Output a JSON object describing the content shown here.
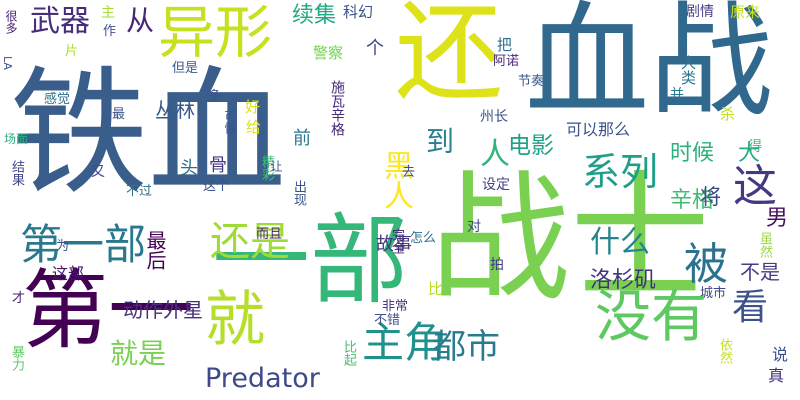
{
  "cloud": {
    "words": [
      {
        "text": "铁血",
        "color": "#3a5e8c",
        "orientation": "horizontal"
      },
      {
        "text": "战士",
        "color": "#7ad151",
        "orientation": "horizontal"
      },
      {
        "text": "血战",
        "color": "#31688e",
        "orientation": "horizontal"
      },
      {
        "text": "还",
        "color": "#dde318",
        "orientation": "horizontal"
      },
      {
        "text": "一部",
        "color": "#35b779",
        "orientation": "horizontal"
      },
      {
        "text": "第一",
        "color": "#440154",
        "orientation": "horizontal"
      },
      {
        "text": "异形",
        "color": "#c8e020",
        "orientation": "horizontal"
      },
      {
        "text": "没有",
        "color": "#5ec962",
        "orientation": "horizontal"
      },
      {
        "text": "就",
        "color": "#b5de2b",
        "orientation": "horizontal"
      },
      {
        "text": "第一部",
        "color": "#2a788e",
        "orientation": "horizontal"
      },
      {
        "text": "主角",
        "color": "#21918c",
        "orientation": "horizontal"
      },
      {
        "text": "还是",
        "color": "#a0da39",
        "orientation": "horizontal"
      },
      {
        "text": "武器",
        "color": "#472d7b",
        "orientation": "horizontal"
      },
      {
        "text": "系列",
        "color": "#1f9e89",
        "orientation": "horizontal"
      },
      {
        "text": "这",
        "color": "#443983",
        "orientation": "horizontal"
      },
      {
        "text": "被",
        "color": "#2c728e",
        "orientation": "horizontal"
      },
      {
        "text": "看",
        "color": "#3b528b",
        "orientation": "horizontal"
      },
      {
        "text": "都市",
        "color": "#287c8e",
        "orientation": "horizontal"
      },
      {
        "text": "就是",
        "color": "#7ad151",
        "orientation": "horizontal"
      },
      {
        "text": "Predator",
        "color": "#3e4989",
        "orientation": "horizontal"
      },
      {
        "text": "什么",
        "color": "#25858e",
        "orientation": "horizontal"
      },
      {
        "text": "续集",
        "color": "#22a884",
        "orientation": "horizontal"
      },
      {
        "text": "从",
        "color": "#482878",
        "orientation": "horizontal"
      },
      {
        "text": "到",
        "color": "#26828e",
        "orientation": "horizontal"
      },
      {
        "text": "人",
        "color": "#2fb47c",
        "orientation": "horizontal"
      },
      {
        "text": "黑人",
        "color": "#fde725",
        "orientation": "vertical"
      },
      {
        "text": "电影",
        "color": "#1fa187",
        "orientation": "horizontal"
      },
      {
        "text": "时候",
        "color": "#2db27d",
        "orientation": "horizontal"
      },
      {
        "text": "男",
        "color": "#471365",
        "orientation": "horizontal"
      },
      {
        "text": "辛格",
        "color": "#3fbc73",
        "orientation": "horizontal"
      },
      {
        "text": "将",
        "color": "#3e4a89",
        "orientation": "horizontal"
      },
      {
        "text": "洛杉矶",
        "color": "#46337e",
        "orientation": "horizontal"
      },
      {
        "text": "不是",
        "color": "#433e85",
        "orientation": "horizontal"
      },
      {
        "text": "动作外星",
        "color": "#472f7d",
        "orientation": "horizontal"
      },
      {
        "text": "丛林",
        "color": "#38598c",
        "orientation": "horizontal"
      },
      {
        "text": "最后",
        "color": "#440154",
        "orientation": "vertical"
      },
      {
        "text": "这部",
        "color": "#481467",
        "orientation": "horizontal"
      },
      {
        "text": "头",
        "color": "#2e6e8e",
        "orientation": "horizontal"
      },
      {
        "text": "骨",
        "color": "#453781",
        "orientation": "vertical"
      },
      {
        "text": "故事",
        "color": "#443983",
        "orientation": "horizontal"
      },
      {
        "text": "前",
        "color": "#2a768e",
        "orientation": "horizontal"
      },
      {
        "text": "个",
        "color": "#3e4989",
        "orientation": "horizontal"
      },
      {
        "text": "警察",
        "color": "#75d054",
        "orientation": "horizontal"
      },
      {
        "text": "科幻",
        "color": "#3b528b",
        "orientation": "horizontal"
      },
      {
        "text": "剧情",
        "color": "#433e85",
        "orientation": "horizontal"
      },
      {
        "text": "原来",
        "color": "#c5e021",
        "orientation": "horizontal"
      },
      {
        "text": "人类",
        "color": "#2a788e",
        "orientation": "vertical"
      },
      {
        "text": "把",
        "color": "#2d708e",
        "orientation": "horizontal"
      },
      {
        "text": "阿诺",
        "color": "#482576",
        "orientation": "horizontal"
      },
      {
        "text": "节奏",
        "color": "#38598c",
        "orientation": "horizontal"
      },
      {
        "text": "州长",
        "color": "#3b528b",
        "orientation": "horizontal"
      },
      {
        "text": "可以那么",
        "color": "#3a538b",
        "orientation": "horizontal"
      },
      {
        "text": "杀",
        "color": "#bddf26",
        "orientation": "horizontal"
      },
      {
        "text": "得",
        "color": "#3dbc74",
        "orientation": "horizontal"
      },
      {
        "text": "大",
        "color": "#27ad81",
        "orientation": "horizontal"
      },
      {
        "text": "并",
        "color": "#2a788e",
        "orientation": "horizontal"
      },
      {
        "text": "设定",
        "color": "#404688",
        "orientation": "horizontal"
      },
      {
        "text": "对",
        "color": "#3f4788",
        "orientation": "horizontal"
      },
      {
        "text": "拍",
        "color": "#443a83",
        "orientation": "horizontal"
      },
      {
        "text": "比",
        "color": "#b8de29",
        "orientation": "horizontal"
      },
      {
        "text": "而且",
        "color": "#482475",
        "orientation": "horizontal"
      },
      {
        "text": "完全",
        "color": "#482878",
        "orientation": "vertical"
      },
      {
        "text": "非常",
        "color": "#46327e",
        "orientation": "horizontal"
      },
      {
        "text": "不错",
        "color": "#3b528b",
        "orientation": "horizontal"
      },
      {
        "text": "城市",
        "color": "#3f4889",
        "orientation": "horizontal"
      },
      {
        "text": "虽然",
        "color": "#9bd93c",
        "orientation": "vertical"
      },
      {
        "text": "依然",
        "color": "#c8e020",
        "orientation": "vertical"
      },
      {
        "text": "说",
        "color": "#3b518b",
        "orientation": "horizontal"
      },
      {
        "text": "真",
        "color": "#472c7a",
        "orientation": "horizontal"
      },
      {
        "text": "比起",
        "color": "#4ac16d",
        "orientation": "vertical"
      },
      {
        "text": "怎么",
        "color": "#2d708e",
        "orientation": "horizontal"
      },
      {
        "text": "为",
        "color": "#3b528b",
        "orientation": "horizontal"
      },
      {
        "text": "才",
        "color": "#482173",
        "orientation": "horizontal"
      },
      {
        "text": "暴力",
        "color": "#5ec962",
        "orientation": "vertical"
      },
      {
        "text": "结果",
        "color": "#404588",
        "orientation": "vertical"
      },
      {
        "text": "不过",
        "color": "#2c728e",
        "orientation": "horizontal"
      },
      {
        "text": "又",
        "color": "#3e4989",
        "orientation": "horizontal"
      },
      {
        "text": "这个",
        "color": "#3b528b",
        "orientation": "horizontal"
      },
      {
        "text": "出现",
        "color": "#3b528b",
        "orientation": "vertical"
      },
      {
        "text": "施瓦辛格",
        "color": "#482979",
        "orientation": "vertical"
      },
      {
        "text": "精彩",
        "color": "#3dbc74",
        "orientation": "vertical"
      },
      {
        "text": "去",
        "color": "#3b528b",
        "orientation": "horizontal"
      },
      {
        "text": "场面",
        "color": "#29af7f",
        "orientation": "horizontal"
      },
      {
        "text": "感觉",
        "color": "#2c728e",
        "orientation": "horizontal"
      },
      {
        "text": "LA",
        "color": "#3b528b",
        "orientation": "vertical"
      },
      {
        "text": "很多",
        "color": "#482173",
        "orientation": "vertical"
      },
      {
        "text": "主",
        "color": "#a5db36",
        "orientation": "horizontal"
      },
      {
        "text": "片",
        "color": "#b0dd2f",
        "orientation": "horizontal"
      },
      {
        "text": "作",
        "color": "#3b528b",
        "orientation": "horizontal"
      },
      {
        "text": "但是",
        "color": "#38598c",
        "orientation": "horizontal"
      },
      {
        "text": "多",
        "color": "#3b528b",
        "orientation": "horizontal"
      },
      {
        "text": "最",
        "color": "#3b528b",
        "orientation": "horizontal"
      },
      {
        "text": "好",
        "color": "#dde318",
        "orientation": "horizontal"
      },
      {
        "text": "给",
        "color": "#dde318",
        "orientation": "horizontal"
      },
      {
        "text": "可惜",
        "color": "#3b528b",
        "orientation": "vertical"
      },
      {
        "text": "让",
        "color": "#3b528b",
        "orientation": "vertical"
      }
    ]
  }
}
